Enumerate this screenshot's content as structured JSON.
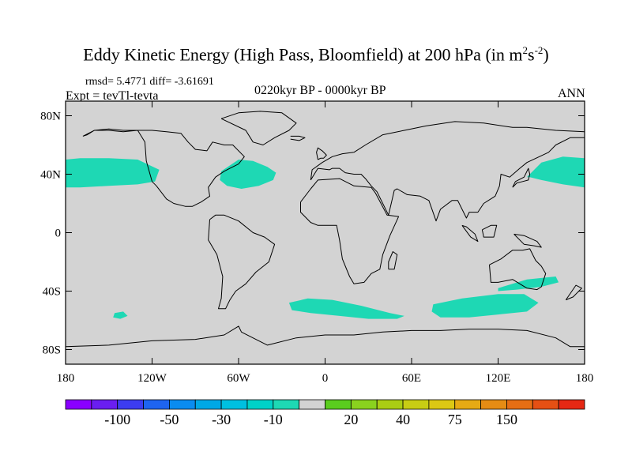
{
  "title": {
    "main": "Eddy Kinetic Energy (High Pass, Bloomfield) at 200 hPa (in m",
    "sup1": "2",
    "mid": "s",
    "sup2": "-2",
    "end": ")"
  },
  "stats": "rmsd= 5.4771 diff= -3.61691",
  "period": "0220kyr BP - 0000kyr BP",
  "experiment": "Expt = tevTl-tevta",
  "season": "ANN",
  "map": {
    "projection": "cylindrical equidistant",
    "lon_range": [
      -180,
      180
    ],
    "lat_range": [
      -90,
      90
    ],
    "background_color": "#d3d3d3",
    "coastline_color": "#000000",
    "lat_ticks": [
      {
        "value": 80,
        "label": "80N"
      },
      {
        "value": 40,
        "label": "40N"
      },
      {
        "value": 0,
        "label": "0"
      },
      {
        "value": -40,
        "label": "40S"
      },
      {
        "value": -80,
        "label": "80S"
      }
    ],
    "lon_ticks": [
      {
        "value": -180,
        "label": "180"
      },
      {
        "value": -120,
        "label": "120W"
      },
      {
        "value": -60,
        "label": "60W"
      },
      {
        "value": 0,
        "label": "0"
      },
      {
        "value": 60,
        "label": "60E"
      },
      {
        "value": 120,
        "label": "120E"
      },
      {
        "value": 180,
        "label": "180"
      }
    ],
    "anomaly_regions": [
      {
        "name": "north-pacific-west",
        "color": "#1ed8b4",
        "lon": [
          -180,
          -170,
          -150,
          -130,
          -115,
          -118,
          -130,
          -150,
          -170,
          -180
        ],
        "lat": [
          50,
          51,
          51,
          50,
          43,
          35,
          33,
          32,
          31,
          31
        ]
      },
      {
        "name": "north-atlantic",
        "color": "#1ed8b4",
        "lon": [
          -72,
          -60,
          -50,
          -40,
          -34,
          -36,
          -46,
          -58,
          -68,
          -73,
          -72
        ],
        "lat": [
          42,
          50,
          49,
          45,
          41,
          36,
          32,
          30,
          32,
          36,
          42
        ]
      },
      {
        "name": "north-pacific-east",
        "color": "#1ed8b4",
        "lon": [
          142,
          150,
          165,
          180,
          180,
          165,
          150,
          142,
          140,
          142
        ],
        "lat": [
          40,
          48,
          52,
          51,
          31,
          33,
          36,
          38,
          38,
          40
        ]
      },
      {
        "name": "south-atlantic-indian",
        "color": "#1ed8b4",
        "lon": [
          -25,
          -12,
          5,
          25,
          45,
          55,
          50,
          30,
          10,
          -10,
          -23,
          -25
        ],
        "lat": [
          -48,
          -45,
          -46,
          -50,
          -55,
          -57,
          -59,
          -59,
          -57,
          -55,
          -53,
          -48
        ]
      },
      {
        "name": "south-indian",
        "color": "#1ed8b4",
        "lon": [
          75,
          95,
          120,
          138,
          148,
          140,
          120,
          100,
          80,
          74,
          75
        ],
        "lat": [
          -49,
          -45,
          -42,
          -42,
          -48,
          -54,
          -56,
          -58,
          -58,
          -54,
          -49
        ]
      },
      {
        "name": "australia-east",
        "color": "#1ed8b4",
        "lon": [
          120,
          140,
          160,
          162,
          150,
          133,
          120,
          120
        ],
        "lat": [
          -38,
          -32,
          -30,
          -34,
          -37,
          -39,
          -40,
          -38
        ]
      },
      {
        "name": "south-pacific-patch",
        "color": "#1ed8b4",
        "lon": [
          -146,
          -140,
          -137,
          -142,
          -147,
          -146
        ],
        "lat": [
          -55,
          -54,
          -57,
          -59,
          -58,
          -55
        ]
      }
    ],
    "coastlines": [
      {
        "name": "north-america",
        "lon": [
          -168,
          -160,
          -150,
          -140,
          -130,
          -125,
          -124,
          -120,
          -117,
          -110,
          -105,
          -97,
          -92,
          -86,
          -80,
          -81,
          -76,
          -70,
          -66,
          -60,
          -56,
          -64,
          -70,
          -78,
          -82,
          -90,
          -95,
          -100,
          -110,
          -120,
          -130,
          -140,
          -150,
          -160,
          -165,
          -168
        ],
        "lat": [
          66,
          70,
          70,
          69,
          70,
          62,
          49,
          35,
          32,
          23,
          20,
          18,
          18,
          21,
          25,
          31,
          38,
          42,
          44,
          47,
          52,
          60,
          60,
          62,
          56,
          57,
          62,
          68,
          69,
          70,
          70,
          70,
          71,
          70,
          67,
          66
        ]
      },
      {
        "name": "south-america",
        "lon": [
          -80,
          -76,
          -70,
          -60,
          -50,
          -42,
          -35,
          -39,
          -48,
          -55,
          -62,
          -66,
          -69,
          -74,
          -72,
          -71,
          -75,
          -81,
          -80
        ],
        "lat": [
          9,
          12,
          12,
          8,
          0,
          -3,
          -8,
          -20,
          -27,
          -35,
          -40,
          -46,
          -52,
          -52,
          -45,
          -30,
          -15,
          -5,
          9
        ]
      },
      {
        "name": "greenland",
        "lon": [
          -72,
          -60,
          -45,
          -30,
          -20,
          -25,
          -35,
          -43,
          -50,
          -55,
          -72
        ],
        "lat": [
          78,
          82,
          83,
          82,
          75,
          70,
          65,
          60,
          62,
          70,
          78
        ]
      },
      {
        "name": "africa",
        "lon": [
          -17,
          -10,
          -5,
          10,
          20,
          32,
          35,
          43,
          51,
          45,
          40,
          38,
          32,
          27,
          20,
          17,
          12,
          10,
          8,
          -5,
          -10,
          -17,
          -17
        ],
        "lat": [
          21,
          30,
          36,
          37,
          32,
          31,
          27,
          12,
          11,
          -2,
          -15,
          -25,
          -28,
          -34,
          -35,
          -30,
          -18,
          -5,
          5,
          5,
          7,
          14,
          21
        ]
      },
      {
        "name": "eurasia",
        "lon": [
          -10,
          -9,
          -2,
          5,
          12,
          20,
          28,
          40,
          55,
          70,
          90,
          110,
          130,
          140,
          160,
          180,
          180,
          170,
          160,
          155,
          140,
          135,
          128,
          122,
          121,
          118,
          110,
          106,
          100,
          98,
          92,
          88,
          80,
          77,
          72,
          66,
          57,
          50,
          48,
          44,
          36,
          32,
          28,
          25,
          20,
          14,
          10,
          5,
          3,
          -5,
          -10
        ],
        "lat": [
          36,
          43,
          48,
          52,
          54,
          55,
          60,
          67,
          70,
          73,
          76,
          75,
          72,
          72,
          70,
          69,
          65,
          65,
          60,
          55,
          48,
          44,
          38,
          40,
          32,
          25,
          20,
          14,
          14,
          10,
          22,
          22,
          16,
          8,
          22,
          25,
          26,
          30,
          29,
          12,
          28,
          32,
          37,
          40,
          40,
          41,
          44,
          44,
          43,
          44,
          36
        ]
      },
      {
        "name": "australia",
        "lon": [
          114,
          122,
          130,
          137,
          142,
          146,
          150,
          153,
          150,
          147,
          140,
          130,
          120,
          115,
          114
        ],
        "lat": [
          -22,
          -18,
          -12,
          -12,
          -11,
          -19,
          -23,
          -28,
          -37,
          -39,
          -38,
          -32,
          -34,
          -34,
          -22
        ]
      },
      {
        "name": "antarctica",
        "lon": [
          -180,
          -150,
          -120,
          -90,
          -70,
          -60,
          -58,
          -40,
          -20,
          0,
          20,
          40,
          60,
          80,
          100,
          120,
          140,
          160,
          170,
          180
        ],
        "lat": [
          -78,
          -77,
          -74,
          -73,
          -70,
          -64,
          -68,
          -77,
          -72,
          -70,
          -70,
          -68,
          -67,
          -67,
          -66,
          -66,
          -67,
          -72,
          -78,
          -78
        ]
      },
      {
        "name": "uk",
        "lon": [
          -5,
          -3,
          -1,
          1,
          -2,
          -5,
          -6,
          -5
        ],
        "lat": [
          50,
          51,
          51,
          53,
          56,
          58,
          55,
          50
        ]
      },
      {
        "name": "japan",
        "lon": [
          130,
          133,
          137,
          141,
          142,
          141,
          138,
          132,
          130
        ],
        "lat": [
          31,
          34,
          35,
          36,
          40,
          44,
          38,
          35,
          31
        ]
      },
      {
        "name": "madagascar",
        "lon": [
          44,
          48,
          50,
          47,
          44,
          44
        ],
        "lat": [
          -25,
          -25,
          -15,
          -13,
          -20,
          -25
        ]
      },
      {
        "name": "new-zealand",
        "lon": [
          167,
          172,
          178,
          174,
          167
        ],
        "lat": [
          -46,
          -44,
          -38,
          -36,
          -46
        ]
      },
      {
        "name": "borneo",
        "lon": [
          109,
          115,
          119,
          117,
          110,
          109
        ],
        "lat": [
          2,
          5,
          5,
          -3,
          -3,
          2
        ]
      },
      {
        "name": "sumatra",
        "lon": [
          95,
          98,
          104,
          106,
          101,
          95
        ],
        "lat": [
          5,
          4,
          -1,
          -6,
          -3,
          5
        ]
      },
      {
        "name": "new-guinea",
        "lon": [
          131,
          138,
          147,
          150,
          145,
          138,
          131
        ],
        "lat": [
          -1,
          -2,
          -6,
          -10,
          -9,
          -8,
          -1
        ]
      },
      {
        "name": "iceland",
        "lon": [
          -24,
          -18,
          -14,
          -18,
          -24
        ],
        "lat": [
          66,
          66,
          65,
          63,
          64
        ]
      }
    ]
  },
  "colorbar": {
    "colors": [
      "#8a00ff",
      "#6a1ef0",
      "#3c3cf0",
      "#1e64f0",
      "#0a8cf0",
      "#00a8e6",
      "#00c0e0",
      "#00d2c8",
      "#1ed8b4",
      "#d3d3d3",
      "#5acd1e",
      "#8ad21e",
      "#aacd14",
      "#c8cd14",
      "#dcc814",
      "#e6aa14",
      "#e68c14",
      "#e66e14",
      "#e65014",
      "#e62814"
    ],
    "labels": [
      {
        "index": 2,
        "text": "-100"
      },
      {
        "index": 4,
        "text": "-50"
      },
      {
        "index": 6,
        "text": "-30"
      },
      {
        "index": 8,
        "text": "-10"
      },
      {
        "index": 11,
        "text": "20"
      },
      {
        "index": 13,
        "text": "40"
      },
      {
        "index": 15,
        "text": "75"
      },
      {
        "index": 17,
        "text": "150"
      }
    ]
  }
}
